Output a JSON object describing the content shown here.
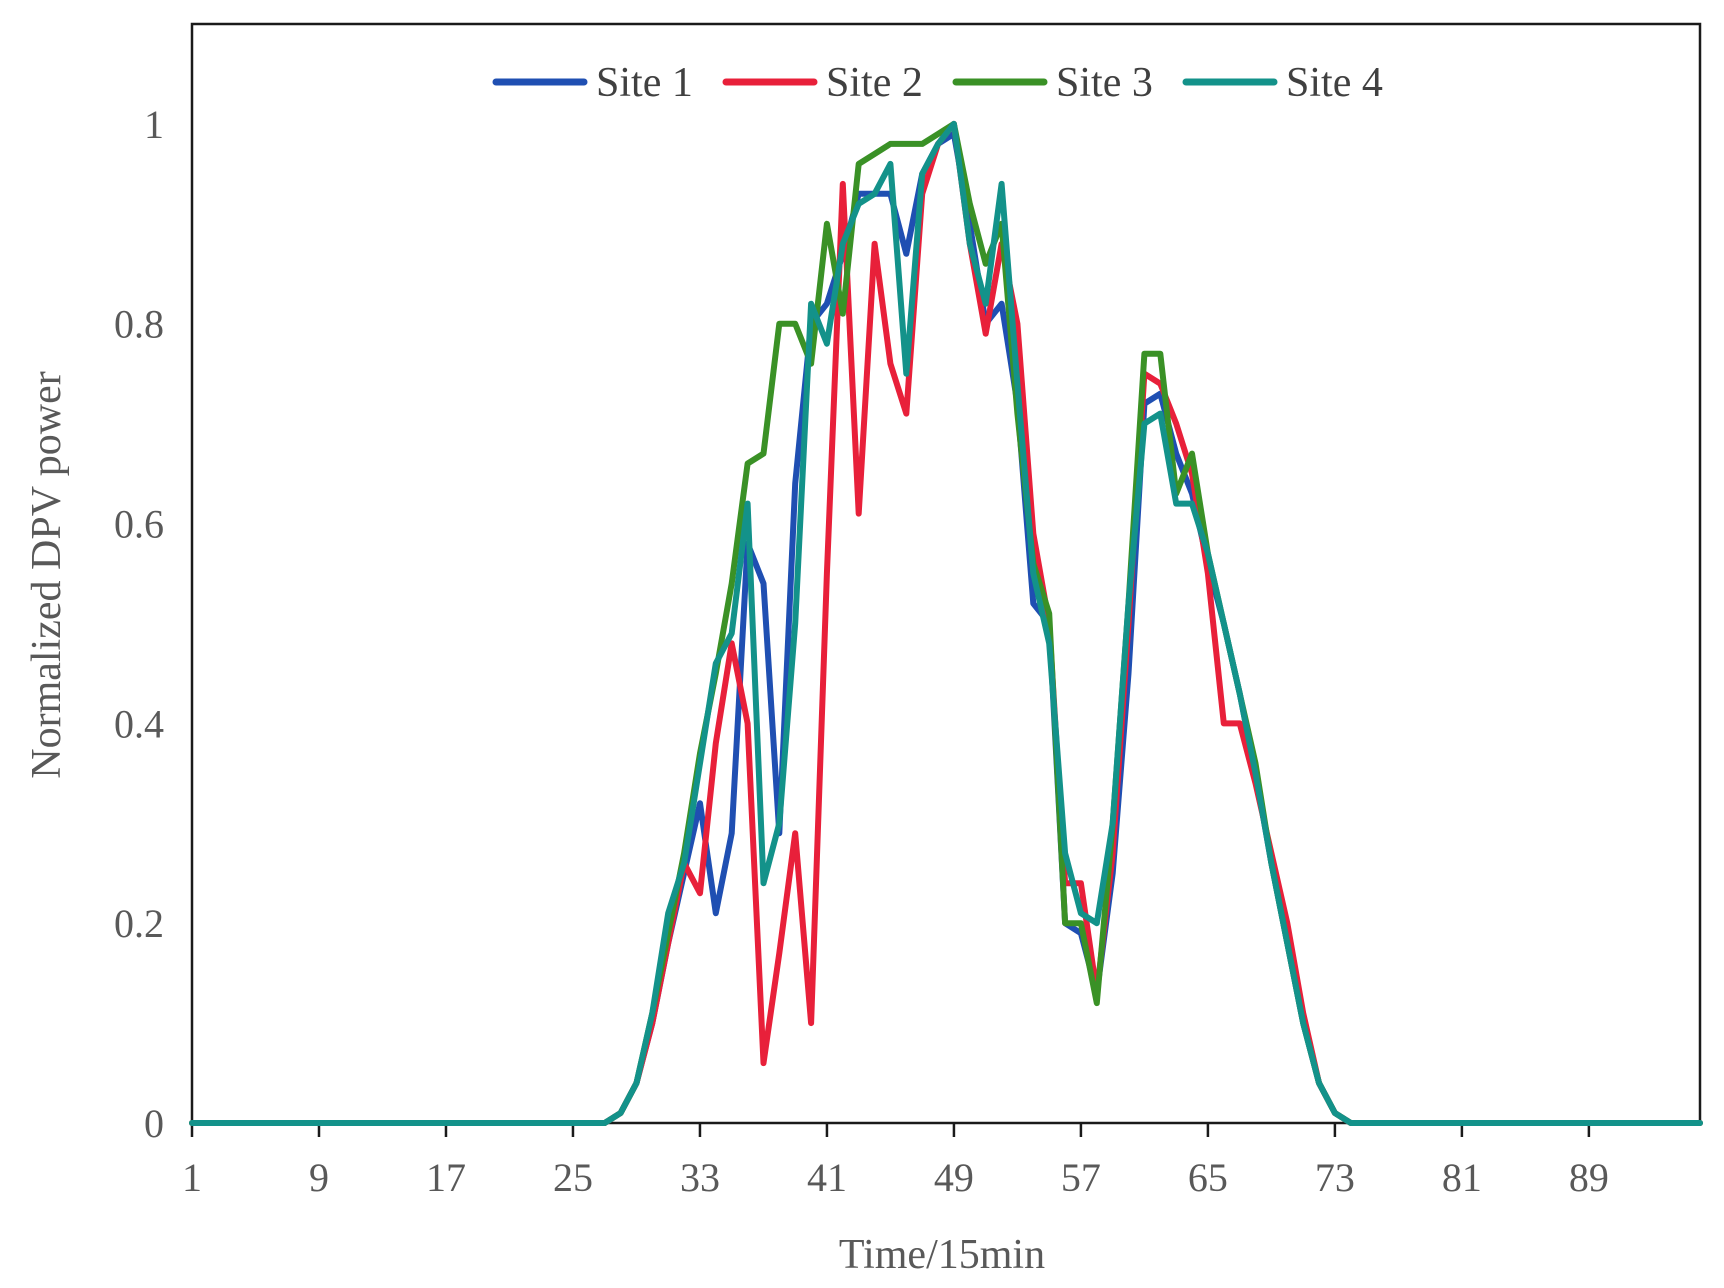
{
  "chart_data": {
    "type": "line",
    "title": "",
    "xlabel": "Time/15min",
    "ylabel": "Normalized DPV power",
    "xlim": [
      1,
      96
    ],
    "ylim": [
      0,
      1.1
    ],
    "x_ticks": [
      1,
      9,
      17,
      25,
      33,
      41,
      49,
      57,
      65,
      73,
      81,
      89
    ],
    "x_tick_labels": [
      "1",
      "9",
      "17",
      "25",
      "33",
      "41",
      "49",
      "57",
      "65",
      "73",
      "81",
      "89"
    ],
    "y_ticks": [
      0,
      0.2,
      0.4,
      0.6,
      0.8,
      1
    ],
    "y_tick_labels": [
      "0",
      "0.2",
      "0.4",
      "0.6",
      "0.8",
      "1"
    ],
    "grid": false,
    "legend_position": "top-center",
    "series": [
      {
        "name": "Site 1",
        "color": "#1f4fb2",
        "points": [
          [
            1,
            0
          ],
          [
            27,
            0
          ],
          [
            28,
            0.01
          ],
          [
            29,
            0.04
          ],
          [
            30,
            0.1
          ],
          [
            31,
            0.18
          ],
          [
            32,
            0.25
          ],
          [
            33,
            0.32
          ],
          [
            34,
            0.21
          ],
          [
            35,
            0.29
          ],
          [
            36,
            0.58
          ],
          [
            37,
            0.54
          ],
          [
            38,
            0.29
          ],
          [
            39,
            0.64
          ],
          [
            40,
            0.8
          ],
          [
            41,
            0.82
          ],
          [
            42,
            0.87
          ],
          [
            43,
            0.93
          ],
          [
            44,
            0.93
          ],
          [
            45,
            0.93
          ],
          [
            46,
            0.87
          ],
          [
            47,
            0.95
          ],
          [
            48,
            0.98
          ],
          [
            49,
            0.99
          ],
          [
            50,
            0.9
          ],
          [
            51,
            0.8
          ],
          [
            52,
            0.82
          ],
          [
            53,
            0.72
          ],
          [
            54,
            0.52
          ],
          [
            55,
            0.5
          ],
          [
            56,
            0.2
          ],
          [
            57,
            0.19
          ],
          [
            58,
            0.13
          ],
          [
            59,
            0.25
          ],
          [
            60,
            0.45
          ],
          [
            61,
            0.72
          ],
          [
            62,
            0.73
          ],
          [
            63,
            0.67
          ],
          [
            64,
            0.63
          ],
          [
            65,
            0.56
          ],
          [
            66,
            0.5
          ],
          [
            67,
            0.43
          ],
          [
            68,
            0.35
          ],
          [
            69,
            0.26
          ],
          [
            70,
            0.18
          ],
          [
            71,
            0.1
          ],
          [
            72,
            0.04
          ],
          [
            73,
            0.01
          ],
          [
            74,
            0
          ],
          [
            96,
            0
          ]
        ]
      },
      {
        "name": "Site 2",
        "color": "#e8203a",
        "points": [
          [
            1,
            0
          ],
          [
            27,
            0
          ],
          [
            28,
            0.01
          ],
          [
            29,
            0.04
          ],
          [
            30,
            0.1
          ],
          [
            31,
            0.18
          ],
          [
            32,
            0.26
          ],
          [
            33,
            0.23
          ],
          [
            34,
            0.38
          ],
          [
            35,
            0.48
          ],
          [
            36,
            0.4
          ],
          [
            37,
            0.06
          ],
          [
            38,
            0.17
          ],
          [
            39,
            0.29
          ],
          [
            40,
            0.1
          ],
          [
            41,
            0.55
          ],
          [
            42,
            0.94
          ],
          [
            43,
            0.61
          ],
          [
            44,
            0.88
          ],
          [
            45,
            0.76
          ],
          [
            46,
            0.71
          ],
          [
            47,
            0.93
          ],
          [
            48,
            0.98
          ],
          [
            49,
            1.0
          ],
          [
            50,
            0.88
          ],
          [
            51,
            0.79
          ],
          [
            52,
            0.88
          ],
          [
            53,
            0.8
          ],
          [
            54,
            0.59
          ],
          [
            55,
            0.5
          ],
          [
            56,
            0.24
          ],
          [
            57,
            0.24
          ],
          [
            58,
            0.13
          ],
          [
            59,
            0.27
          ],
          [
            60,
            0.5
          ],
          [
            61,
            0.75
          ],
          [
            62,
            0.74
          ],
          [
            63,
            0.7
          ],
          [
            64,
            0.65
          ],
          [
            65,
            0.55
          ],
          [
            66,
            0.4
          ],
          [
            67,
            0.4
          ],
          [
            68,
            0.34
          ],
          [
            69,
            0.27
          ],
          [
            70,
            0.2
          ],
          [
            71,
            0.11
          ],
          [
            72,
            0.04
          ],
          [
            73,
            0.01
          ],
          [
            74,
            0
          ],
          [
            96,
            0
          ]
        ]
      },
      {
        "name": "Site 3",
        "color": "#3a9126",
        "points": [
          [
            1,
            0
          ],
          [
            27,
            0
          ],
          [
            28,
            0.01
          ],
          [
            29,
            0.04
          ],
          [
            30,
            0.11
          ],
          [
            31,
            0.19
          ],
          [
            32,
            0.27
          ],
          [
            33,
            0.37
          ],
          [
            34,
            0.45
          ],
          [
            35,
            0.54
          ],
          [
            36,
            0.66
          ],
          [
            37,
            0.67
          ],
          [
            38,
            0.8
          ],
          [
            39,
            0.8
          ],
          [
            40,
            0.76
          ],
          [
            41,
            0.9
          ],
          [
            42,
            0.81
          ],
          [
            43,
            0.96
          ],
          [
            44,
            0.97
          ],
          [
            45,
            0.98
          ],
          [
            46,
            0.98
          ],
          [
            47,
            0.98
          ],
          [
            48,
            0.99
          ],
          [
            49,
            1.0
          ],
          [
            50,
            0.92
          ],
          [
            51,
            0.86
          ],
          [
            52,
            0.9
          ],
          [
            53,
            0.71
          ],
          [
            54,
            0.56
          ],
          [
            55,
            0.51
          ],
          [
            56,
            0.2
          ],
          [
            57,
            0.2
          ],
          [
            58,
            0.12
          ],
          [
            59,
            0.3
          ],
          [
            60,
            0.52
          ],
          [
            61,
            0.77
          ],
          [
            62,
            0.77
          ],
          [
            63,
            0.63
          ],
          [
            64,
            0.67
          ],
          [
            65,
            0.57
          ],
          [
            66,
            0.5
          ],
          [
            67,
            0.43
          ],
          [
            68,
            0.36
          ],
          [
            69,
            0.26
          ],
          [
            70,
            0.18
          ],
          [
            71,
            0.1
          ],
          [
            72,
            0.04
          ],
          [
            73,
            0.01
          ],
          [
            74,
            0
          ],
          [
            96,
            0
          ]
        ]
      },
      {
        "name": "Site 4",
        "color": "#13928a",
        "points": [
          [
            1,
            0
          ],
          [
            27,
            0
          ],
          [
            28,
            0.01
          ],
          [
            29,
            0.04
          ],
          [
            30,
            0.11
          ],
          [
            31,
            0.21
          ],
          [
            32,
            0.26
          ],
          [
            33,
            0.36
          ],
          [
            34,
            0.46
          ],
          [
            35,
            0.49
          ],
          [
            36,
            0.62
          ],
          [
            37,
            0.24
          ],
          [
            38,
            0.3
          ],
          [
            39,
            0.5
          ],
          [
            40,
            0.82
          ],
          [
            41,
            0.78
          ],
          [
            42,
            0.88
          ],
          [
            43,
            0.92
          ],
          [
            44,
            0.93
          ],
          [
            45,
            0.96
          ],
          [
            46,
            0.75
          ],
          [
            47,
            0.95
          ],
          [
            48,
            0.98
          ],
          [
            49,
            1.0
          ],
          [
            50,
            0.88
          ],
          [
            51,
            0.82
          ],
          [
            52,
            0.94
          ],
          [
            53,
            0.74
          ],
          [
            54,
            0.55
          ],
          [
            55,
            0.48
          ],
          [
            56,
            0.27
          ],
          [
            57,
            0.21
          ],
          [
            58,
            0.2
          ],
          [
            59,
            0.3
          ],
          [
            60,
            0.52
          ],
          [
            61,
            0.7
          ],
          [
            62,
            0.71
          ],
          [
            63,
            0.62
          ],
          [
            64,
            0.62
          ],
          [
            65,
            0.57
          ],
          [
            66,
            0.5
          ],
          [
            67,
            0.43
          ],
          [
            68,
            0.35
          ],
          [
            69,
            0.26
          ],
          [
            70,
            0.18
          ],
          [
            71,
            0.1
          ],
          [
            72,
            0.04
          ],
          [
            73,
            0.01
          ],
          [
            74,
            0
          ],
          [
            96,
            0
          ]
        ]
      }
    ]
  }
}
